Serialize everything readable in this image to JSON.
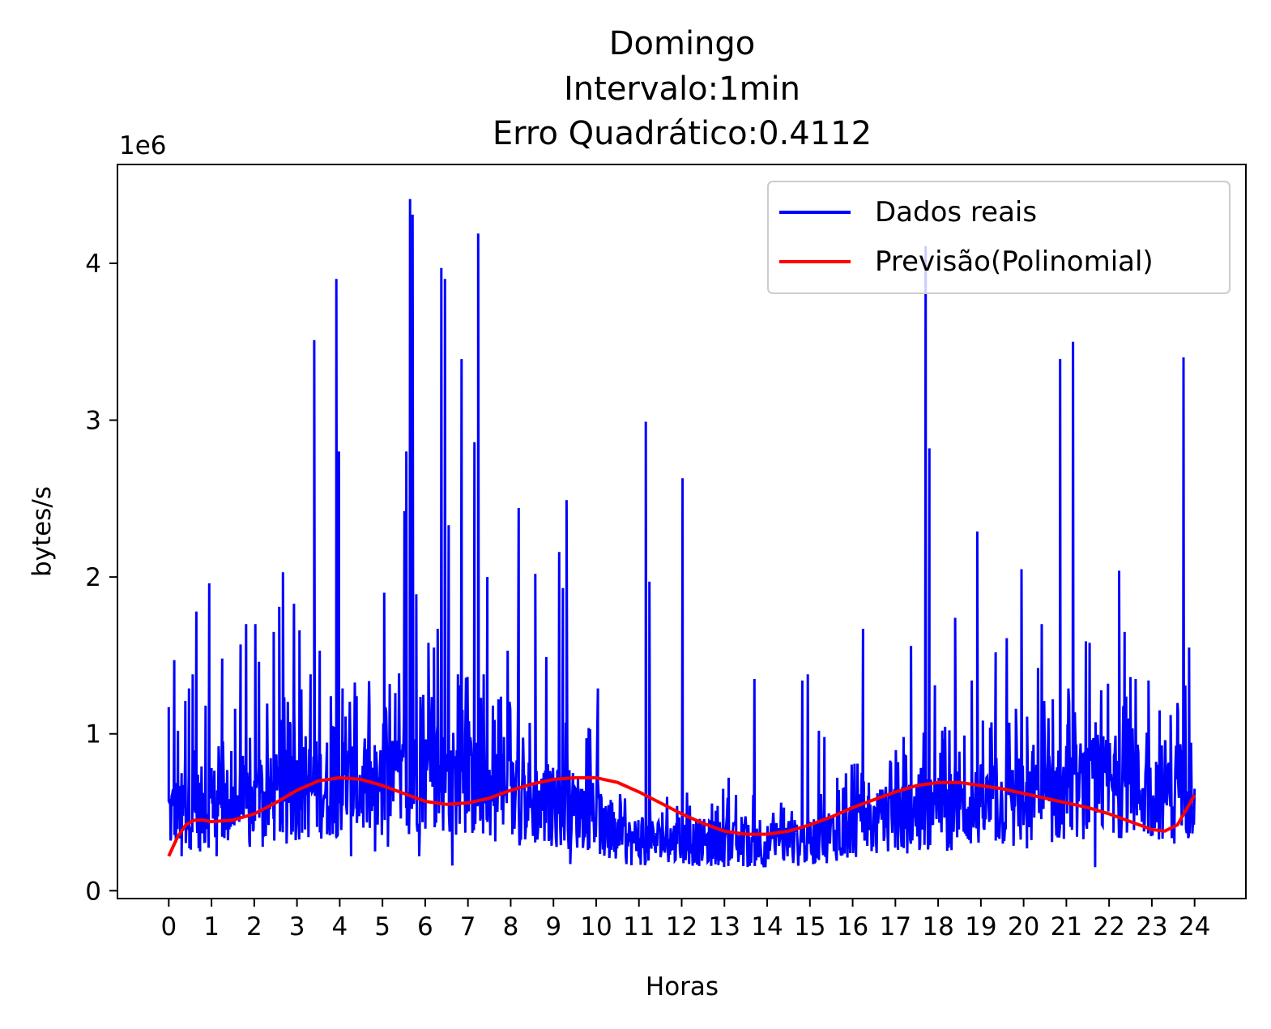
{
  "chart_data": {
    "type": "line",
    "title_lines": [
      "Domingo",
      "Intervalo:1min",
      "Erro Quadrático:0.4112"
    ],
    "xlabel": "Horas",
    "ylabel": "bytes/s",
    "y_scale_label": "1e6",
    "y_scale_factor": 1000000,
    "xlim": [
      -1.2,
      25.2
    ],
    "ylim": [
      -0.05,
      4.63
    ],
    "x_ticks": [
      0,
      1,
      2,
      3,
      4,
      5,
      6,
      7,
      8,
      9,
      10,
      11,
      12,
      13,
      14,
      15,
      16,
      17,
      18,
      19,
      20,
      21,
      22,
      23,
      24
    ],
    "x_tick_labels": [
      "0",
      "1",
      "2",
      "3",
      "4",
      "5",
      "6",
      "7",
      "8",
      "9",
      "10",
      "11",
      "12",
      "13",
      "14",
      "15",
      "16",
      "17",
      "18",
      "19",
      "20",
      "21",
      "22",
      "23",
      "24"
    ],
    "y_ticks": [
      0,
      1,
      2,
      3,
      4
    ],
    "y_tick_labels": [
      "0",
      "1",
      "2",
      "3",
      "4"
    ],
    "legend_position": "upper-right",
    "grid": false,
    "series": [
      {
        "name": "Dados reais",
        "color": "#0000ff",
        "kind": "noisy",
        "baseline_profile": [
          [
            0,
            0.55
          ],
          [
            1,
            0.6
          ],
          [
            2,
            0.6
          ],
          [
            3,
            0.7
          ],
          [
            4,
            0.75
          ],
          [
            5,
            0.7
          ],
          [
            6,
            0.8
          ],
          [
            7,
            0.75
          ],
          [
            8,
            0.65
          ],
          [
            9,
            0.6
          ],
          [
            10,
            0.55
          ],
          [
            10.3,
            0.35
          ],
          [
            11,
            0.35
          ],
          [
            12,
            0.35
          ],
          [
            13,
            0.33
          ],
          [
            14,
            0.32
          ],
          [
            15,
            0.35
          ],
          [
            16,
            0.45
          ],
          [
            17,
            0.5
          ],
          [
            18,
            0.55
          ],
          [
            19,
            0.6
          ],
          [
            20,
            0.6
          ],
          [
            21,
            0.7
          ],
          [
            22,
            0.75
          ],
          [
            23,
            0.7
          ],
          [
            24,
            0.75
          ]
        ],
        "spikes": [
          [
            0.0,
            1.17
          ],
          [
            0.05,
            0.32
          ],
          [
            0.15,
            1.47
          ],
          [
            0.25,
            1.02
          ],
          [
            0.35,
            0.22
          ],
          [
            0.45,
            1.21
          ],
          [
            0.55,
            1.29
          ],
          [
            0.6,
            0.38
          ],
          [
            0.65,
            1.38
          ],
          [
            0.75,
            1.78
          ],
          [
            0.85,
            0.25
          ],
          [
            1.0,
            1.18
          ],
          [
            1.1,
            1.96
          ],
          [
            1.2,
            0.46
          ],
          [
            1.3,
            0.22
          ],
          [
            1.45,
            1.48
          ],
          [
            1.55,
            0.58
          ],
          [
            1.7,
            0.89
          ],
          [
            1.8,
            1.16
          ],
          [
            1.95,
            1.57
          ],
          [
            2.1,
            1.7
          ],
          [
            2.2,
            0.28
          ],
          [
            2.35,
            1.7
          ],
          [
            2.45,
            1.46
          ],
          [
            2.55,
            0.28
          ],
          [
            2.7,
            0.69
          ],
          [
            2.85,
            1.65
          ],
          [
            3.0,
            1.81
          ],
          [
            3.1,
            2.03
          ],
          [
            3.2,
            0.3
          ],
          [
            3.3,
            1.06
          ],
          [
            3.4,
            1.83
          ],
          [
            3.55,
            1.66
          ],
          [
            3.7,
            0.39
          ],
          [
            3.85,
            1.38
          ],
          [
            3.95,
            3.51
          ],
          [
            4.1,
            1.53
          ],
          [
            4.3,
            0.36
          ],
          [
            4.4,
            1.24
          ],
          [
            4.5,
            0.43
          ],
          [
            4.55,
            3.9
          ],
          [
            4.62,
            2.8
          ],
          [
            4.72,
            1.29
          ],
          [
            4.8,
            1.11
          ],
          [
            4.95,
            0.22
          ],
          [
            5.1,
            1.24
          ],
          [
            5.35,
            0.62
          ],
          [
            5.45,
            1.16
          ],
          [
            5.6,
            0.25
          ],
          [
            5.75,
            0.86
          ],
          [
            5.85,
            1.9
          ],
          [
            5.95,
            0.28
          ],
          [
            6.15,
            1.26
          ],
          [
            6.3,
            0.46
          ],
          [
            6.4,
            2.42
          ],
          [
            6.45,
            2.8
          ],
          [
            6.55,
            4.41
          ],
          [
            6.62,
            4.31
          ],
          [
            6.72,
            1.89
          ],
          [
            6.8,
            0.22
          ],
          [
            6.9,
            1.12
          ],
          [
            7.05,
            1.58
          ],
          [
            7.2,
            1.55
          ],
          [
            7.3,
            1.67
          ],
          [
            7.4,
            3.97
          ],
          [
            7.5,
            3.9
          ],
          [
            7.6,
            2.33
          ],
          [
            7.7,
            0.16
          ],
          [
            7.85,
            1.38
          ],
          [
            7.95,
            3.39
          ],
          [
            8.05,
            0.37
          ],
          [
            8.15,
            1.08
          ],
          [
            8.3,
            2.86
          ],
          [
            8.4,
            4.19
          ],
          [
            8.55,
            1.38
          ],
          [
            8.65,
            2.0
          ],
          [
            8.8,
            1.18
          ],
          [
            8.95,
            1.22
          ],
          [
            9.1,
            0.98
          ],
          [
            9.2,
            1.53
          ],
          [
            9.35,
            0.77
          ],
          [
            9.5,
            2.44
          ],
          [
            9.65,
            0.65
          ],
          [
            9.8,
            1.07
          ],
          [
            9.95,
            2.02
          ],
          [
            10.1,
            0.4
          ],
          [
            10.25,
            1.49
          ],
          [
            10.45,
            0.53
          ],
          [
            10.6,
            2.16
          ],
          [
            10.7,
            1.93
          ],
          [
            10.8,
            2.49
          ],
          [
            10.9,
            0.17
          ],
          [
            11.1,
            0.41
          ],
          [
            11.3,
            0.34
          ],
          [
            11.5,
            0.44
          ],
          [
            11.65,
            1.29
          ],
          [
            11.8,
            0.37
          ],
          [
            12.0,
            0.4
          ],
          [
            12.2,
            0.36
          ],
          [
            12.4,
            0.43
          ],
          [
            12.55,
            0.33
          ],
          [
            12.75,
            0.45
          ],
          [
            12.95,
            2.99
          ],
          [
            13.05,
            1.97
          ],
          [
            13.2,
            0.27
          ],
          [
            13.4,
            0.5
          ],
          [
            13.6,
            0.33
          ],
          [
            13.8,
            0.54
          ],
          [
            13.95,
            2.63
          ],
          [
            14.1,
            0.43
          ],
          [
            14.3,
            0.38
          ],
          [
            14.5,
            0.32
          ],
          [
            14.7,
            0.4
          ],
          [
            14.85,
            0.51
          ],
          [
            15.05,
            0.65
          ],
          [
            15.2,
            0.72
          ],
          [
            15.4,
            0.61
          ],
          [
            15.55,
            0.47
          ],
          [
            15.75,
            0.28
          ],
          [
            15.9,
            1.35
          ],
          [
            16.05,
            0.45
          ],
          [
            16.3,
            0.27
          ],
          [
            16.5,
            0.43
          ],
          [
            16.7,
            0.53
          ],
          [
            16.85,
            0.3
          ],
          [
            17.05,
            0.38
          ],
          [
            17.2,
            1.34
          ],
          [
            17.35,
            1.38
          ],
          [
            17.5,
            0.39
          ],
          [
            17.65,
            1.02
          ],
          [
            17.8,
            0.98
          ],
          [
            17.95,
            0.3
          ],
          [
            18.15,
            0.72
          ],
          [
            18.35,
            0.66
          ],
          [
            18.5,
            0.24
          ],
          [
            18.7,
            0.81
          ],
          [
            18.85,
            1.67
          ],
          [
            19.0,
            0.39
          ],
          [
            19.2,
            0.31
          ],
          [
            19.4,
            0.57
          ],
          [
            19.6,
            0.7
          ],
          [
            19.8,
            0.82
          ],
          [
            19.95,
            0.98
          ],
          [
            20.15,
            1.56
          ],
          [
            20.3,
            0.56
          ],
          [
            20.45,
            0.39
          ],
          [
            20.55,
            4.11
          ],
          [
            20.65,
            2.82
          ],
          [
            20.8,
            1.31
          ],
          [
            20.95,
            0.88
          ],
          [
            21.15,
            0.6
          ],
          [
            21.35,
            1.74
          ],
          [
            21.45,
            0.39
          ],
          [
            21.6,
            0.99
          ],
          [
            21.8,
            1.34
          ],
          [
            21.95,
            2.29
          ],
          [
            22.1,
            0.46
          ],
          [
            22.3,
            1.04
          ],
          [
            22.45,
            1.52
          ],
          [
            22.55,
            0.33
          ],
          [
            22.75,
            1.61
          ],
          [
            22.85,
            0.77
          ],
          [
            23.0,
            1.16
          ],
          [
            23.15,
            2.05
          ],
          [
            23.3,
            0.27
          ],
          [
            23.45,
            0.89
          ],
          [
            23.6,
            1.42
          ],
          [
            23.7,
            1.7
          ],
          [
            23.9,
            0.57
          ],
          [
            24.0,
            1.22
          ],
          [
            24.2,
            3.39
          ],
          [
            24.3,
            0.33
          ],
          [
            24.4,
            1.06
          ],
          [
            24.55,
            3.5
          ],
          [
            24.7,
            0.57
          ],
          [
            24.9,
            1.59
          ],
          [
            25.0,
            1.58
          ],
          [
            25.15,
            0.15
          ],
          [
            25.3,
            0.86
          ],
          [
            25.5,
            1.32
          ],
          [
            25.65,
            0.37
          ],
          [
            25.8,
            2.04
          ],
          [
            25.95,
            1.65
          ],
          [
            26.1,
            0.76
          ],
          [
            26.25,
            1.35
          ],
          [
            26.45,
            0.58
          ],
          [
            26.6,
            1.34
          ],
          [
            26.8,
            0.49
          ],
          [
            26.9,
            1.15
          ],
          [
            27.05,
            0.96
          ],
          [
            27.2,
            1.12
          ],
          [
            27.3,
            0.3
          ],
          [
            27.4,
            1.14
          ],
          [
            27.55,
            3.4
          ],
          [
            27.7,
            1.55
          ],
          [
            27.85,
            0.33
          ]
        ],
        "values_note": ""
      },
      {
        "name": "Previsão(Polinomial)",
        "color": "#ff0000",
        "kind": "curve",
        "x": [
          0,
          0.2,
          0.4,
          0.6,
          0.8,
          1,
          1.5,
          2,
          2.5,
          3,
          3.5,
          4,
          4.5,
          5,
          5.5,
          6,
          6.5,
          7,
          7.5,
          8,
          8.5,
          9,
          9.5,
          10,
          10.5,
          11,
          11.5,
          12,
          12.5,
          13,
          13.5,
          14,
          14.5,
          15,
          15.5,
          16,
          16.5,
          17,
          17.5,
          18,
          18.5,
          19,
          19.5,
          20,
          20.5,
          21,
          21.5,
          22,
          22.5,
          23,
          23.3,
          23.6,
          24
        ],
        "y": [
          0.22,
          0.34,
          0.42,
          0.45,
          0.45,
          0.44,
          0.45,
          0.49,
          0.56,
          0.64,
          0.7,
          0.72,
          0.71,
          0.67,
          0.62,
          0.57,
          0.55,
          0.56,
          0.59,
          0.64,
          0.68,
          0.71,
          0.72,
          0.72,
          0.69,
          0.63,
          0.56,
          0.49,
          0.43,
          0.38,
          0.36,
          0.36,
          0.38,
          0.42,
          0.47,
          0.53,
          0.58,
          0.63,
          0.67,
          0.69,
          0.69,
          0.67,
          0.65,
          0.62,
          0.59,
          0.56,
          0.53,
          0.49,
          0.44,
          0.39,
          0.38,
          0.42,
          0.61
        ]
      }
    ]
  }
}
